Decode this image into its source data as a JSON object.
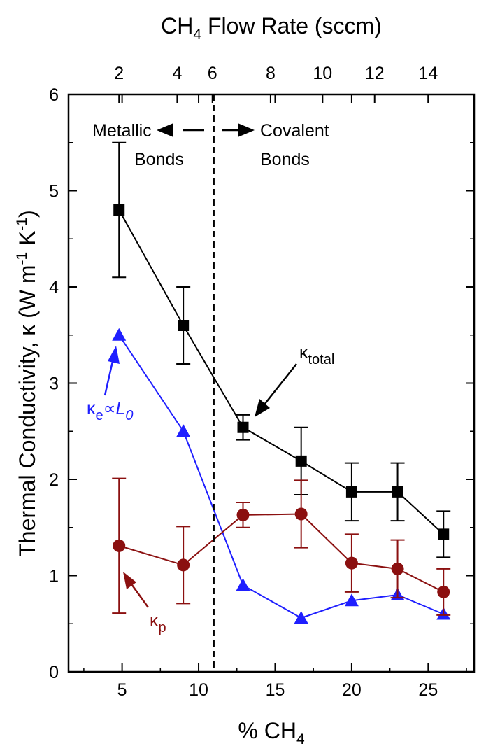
{
  "chart_data": {
    "type": "line",
    "ylabel": "Thermal Conductivity, κ (W m⁻¹ K⁻¹)",
    "xlabel": "% CH4",
    "top_axis_label": "CH4 Flow Rate (sccm)",
    "xlim": [
      1.5,
      28
    ],
    "ylim": [
      0,
      6
    ],
    "x_ticks": [
      5,
      10,
      15,
      20,
      25
    ],
    "y_ticks": [
      0,
      1,
      2,
      3,
      4,
      5,
      6
    ],
    "top_axis": {
      "ticks": [
        {
          "label": "2",
          "x": 4.8
        },
        {
          "label": "4",
          "x": 8.6
        },
        {
          "label": "6",
          "x": 10.9
        },
        {
          "label": "8",
          "x": 14.7
        },
        {
          "label": "10",
          "x": 18.1
        },
        {
          "label": "12",
          "x": 21.5
        },
        {
          "label": "14",
          "x": 25.0
        }
      ]
    },
    "divider_x": 11.0,
    "series": [
      {
        "name": "κtotal",
        "color": "#000000",
        "marker": "square",
        "x": [
          4.8,
          9.0,
          12.9,
          16.7,
          20.0,
          23.0,
          26.0
        ],
        "y": [
          4.8,
          3.6,
          2.54,
          2.19,
          1.87,
          1.87,
          1.43
        ],
        "err": [
          0.7,
          0.4,
          0.13,
          0.35,
          0.3,
          0.3,
          0.24
        ]
      },
      {
        "name": "κe∝L0",
        "color": "#1f1fff",
        "marker": "triangle",
        "x": [
          4.8,
          9.0,
          12.9,
          16.7,
          20.0,
          23.0,
          26.0
        ],
        "y": [
          3.5,
          2.5,
          0.9,
          0.56,
          0.74,
          0.8,
          0.6
        ],
        "err": []
      },
      {
        "name": "κp",
        "color": "#8b1010",
        "marker": "circle",
        "x": [
          4.8,
          9.0,
          12.9,
          16.7,
          20.0,
          23.0,
          26.0
        ],
        "y": [
          1.31,
          1.11,
          1.63,
          1.64,
          1.13,
          1.07,
          0.83
        ],
        "err": [
          0.7,
          0.4,
          0.13,
          0.35,
          0.3,
          0.3,
          0.24
        ]
      }
    ],
    "annotations": {
      "metallic_line1": "Metallic",
      "metallic_line2": "Bonds",
      "covalent_line1": "Covalent",
      "covalent_line2": "Bonds",
      "ktotal_label": "κtotal",
      "ke_label": "κe∝L0",
      "kp_label": "κp"
    }
  }
}
